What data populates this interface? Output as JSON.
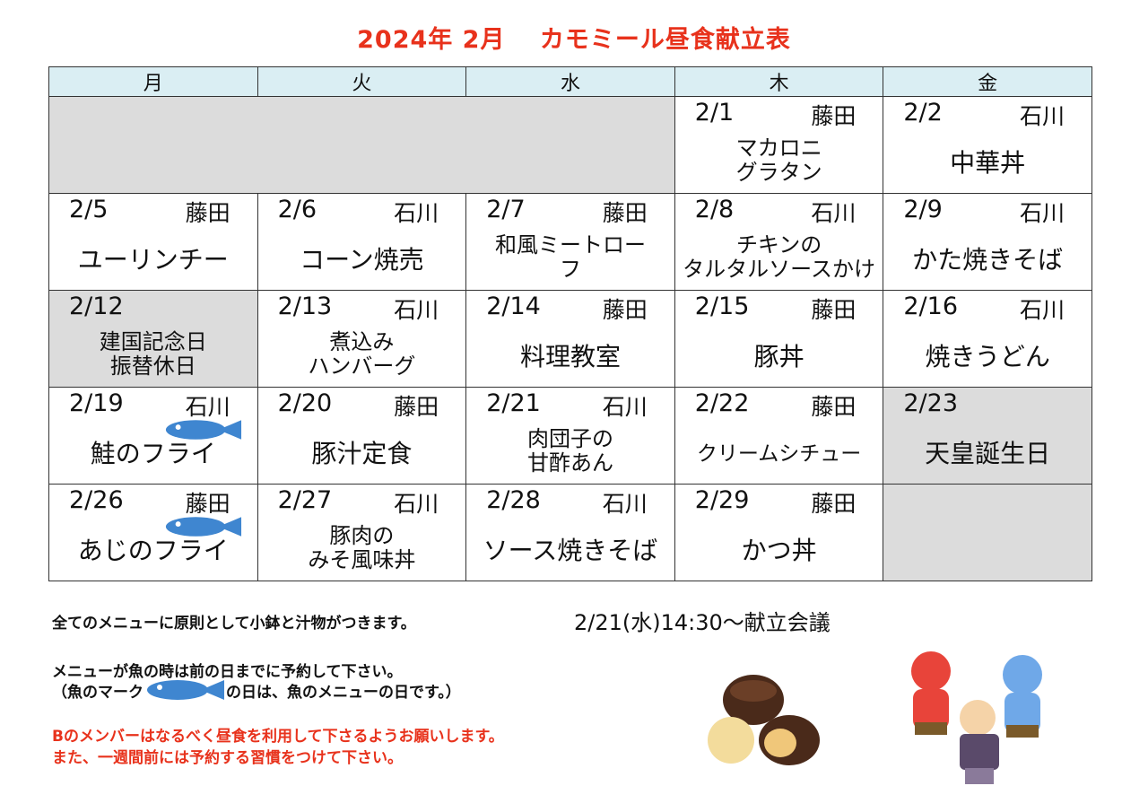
{
  "title": "2024年 2月　 カモミール昼食献立表",
  "weekdays": [
    "月",
    "火",
    "水",
    "木",
    "金"
  ],
  "weeks": [
    [
      {
        "gray": true,
        "span": 3
      },
      {
        "date": "2/1",
        "cook": "藤田",
        "menu": [
          "マカロニ",
          "グラタン"
        ]
      },
      {
        "date": "2/2",
        "cook": "石川",
        "menu": [
          "中華丼"
        ]
      }
    ],
    [
      {
        "date": "2/5",
        "cook": "藤田",
        "menu": [
          "ユーリンチー"
        ]
      },
      {
        "date": "2/6",
        "cook": "石川",
        "menu": [
          "コーン焼売"
        ]
      },
      {
        "date": "2/7",
        "cook": "藤田",
        "menu": [
          "和風ミートロー",
          "フ"
        ]
      },
      {
        "date": "2/8",
        "cook": "石川",
        "menu": [
          "チキンの",
          "タルタルソースかけ"
        ]
      },
      {
        "date": "2/9",
        "cook": "石川",
        "menu": [
          "かた焼きそば"
        ]
      }
    ],
    [
      {
        "date": "2/12",
        "cook": "",
        "menu": [
          "建国記念日",
          "振替休日"
        ],
        "gray": true
      },
      {
        "date": "2/13",
        "cook": "石川",
        "menu": [
          "煮込み",
          "ハンバーグ"
        ]
      },
      {
        "date": "2/14",
        "cook": "藤田",
        "menu": [
          "料理教室"
        ]
      },
      {
        "date": "2/15",
        "cook": "藤田",
        "menu": [
          "豚丼"
        ]
      },
      {
        "date": "2/16",
        "cook": "石川",
        "menu": [
          "焼きうどん"
        ]
      }
    ],
    [
      {
        "date": "2/19",
        "cook": "石川",
        "menu": [
          "鮭のフライ"
        ],
        "fish": true
      },
      {
        "date": "2/20",
        "cook": "藤田",
        "menu": [
          "豚汁定食"
        ]
      },
      {
        "date": "2/21",
        "cook": "石川",
        "menu": [
          "肉団子の",
          "甘酢あん"
        ]
      },
      {
        "date": "2/22",
        "cook": "藤田",
        "menu": [
          "クリームシチュー"
        ]
      },
      {
        "date": "2/23",
        "cook": "",
        "menu": [
          "天皇誕生日"
        ],
        "gray": true
      }
    ],
    [
      {
        "date": "2/26",
        "cook": "藤田",
        "menu": [
          "あじのフライ"
        ],
        "fish": true
      },
      {
        "date": "2/27",
        "cook": "石川",
        "menu": [
          "豚肉の",
          "みそ風味丼"
        ]
      },
      {
        "date": "2/28",
        "cook": "石川",
        "menu": [
          "ソース焼きそば"
        ]
      },
      {
        "date": "2/29",
        "cook": "藤田",
        "menu": [
          "かつ丼"
        ]
      },
      {
        "gray": true
      }
    ]
  ],
  "notes": {
    "line1": "全てのメニューに原則として小鉢と汁物がつきます。",
    "line2": "メニューが魚の時は前の日までに予約して下さい。",
    "line3a": "（魚のマーク",
    "line3b": "の日は、魚のメニューの日です。）",
    "line4": "Bのメンバーはなるべく昼食を利用して下さるようお願いします。",
    "line5": "また、一週間前には予約する習慣をつけて下さい。",
    "meeting": "2/21(水)14:30～献立会議"
  },
  "colors": {
    "title": "#e8321c",
    "header": "#daeef3",
    "gray": "#dcdcdc",
    "fish": "#3f86d0"
  }
}
